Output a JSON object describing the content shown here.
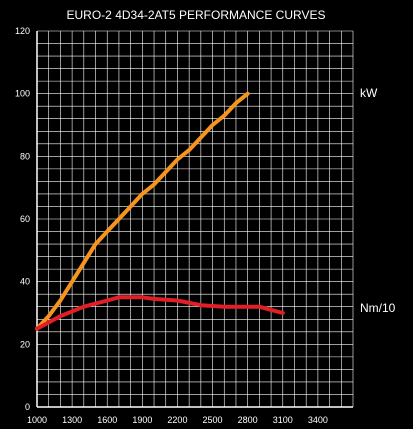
{
  "chart_data": {
    "type": "line",
    "title": "EURO-2 4D34-2AT5 PERFORMANCE CURVES",
    "xlabel": "",
    "ylabel": "",
    "xlim": [
      1000,
      3700
    ],
    "ylim": [
      0,
      120
    ],
    "x_ticks": [
      1000,
      1300,
      1600,
      1900,
      2200,
      2500,
      2800,
      3100,
      3400
    ],
    "y_ticks": [
      0,
      20,
      40,
      60,
      80,
      100,
      120
    ],
    "grid": true,
    "series": [
      {
        "name": "kW",
        "color": "#f7941d",
        "x": [
          1000,
          1100,
          1200,
          1300,
          1400,
          1500,
          1600,
          1700,
          1800,
          1900,
          2000,
          2100,
          2200,
          2300,
          2400,
          2500,
          2600,
          2700,
          2800
        ],
        "y": [
          25,
          29,
          34,
          40,
          46,
          52,
          56,
          60,
          64,
          68,
          71,
          75,
          79,
          82,
          86,
          90,
          93,
          97,
          100
        ]
      },
      {
        "name": "Nm/10",
        "color": "#e21e26",
        "x": [
          1000,
          1200,
          1400,
          1600,
          1700,
          1800,
          1900,
          2000,
          2200,
          2400,
          2600,
          2800,
          2900,
          3000,
          3100
        ],
        "y": [
          25,
          29,
          32,
          34,
          35,
          35,
          35,
          34.5,
          34,
          32.5,
          32,
          32,
          32,
          31,
          30
        ]
      }
    ]
  }
}
